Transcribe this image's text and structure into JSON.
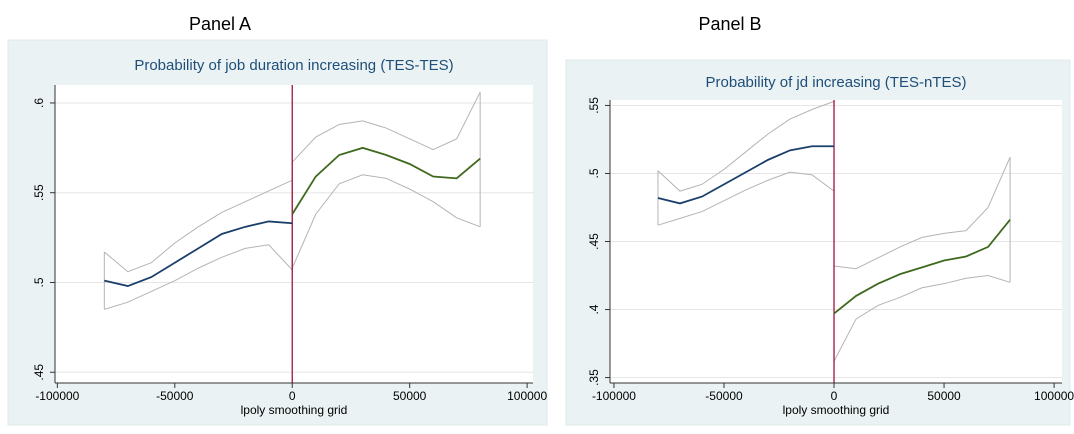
{
  "chart_data": [
    {
      "type": "line",
      "panel_label": "Panel A",
      "title": "Probability of job duration increasing (TES-TES)",
      "x_label": "lpoly smoothing grid",
      "xlim": [
        -101000,
        102500
      ],
      "xticks": [
        -100000,
        -50000,
        0,
        50000,
        100000
      ],
      "ylim": [
        0.444,
        0.61
      ],
      "yticks": [
        {
          "value": 0.45,
          "label": ".45"
        },
        {
          "value": 0.5,
          "label": ".5"
        },
        {
          "value": 0.55,
          "label": ".55"
        },
        {
          "value": 0.6,
          "label": ".6"
        }
      ],
      "grid": true,
      "cutoff": 0,
      "cutoff_color": "#a0143c",
      "bands": [
        {
          "color": "#b4b4b4",
          "x": [
            -80000,
            -70000,
            -60000,
            -50000,
            -40000,
            -30000,
            -20000,
            -10000,
            0
          ],
          "upper": [
            0.517,
            0.506,
            0.511,
            0.522,
            0.531,
            0.539,
            0.545,
            0.551,
            0.557
          ],
          "lower": [
            0.485,
            0.489,
            0.495,
            0.501,
            0.508,
            0.514,
            0.519,
            0.521,
            0.507
          ]
        },
        {
          "color": "#b4b4b4",
          "x": [
            0,
            10000,
            20000,
            30000,
            40000,
            50000,
            60000,
            70000,
            80000
          ],
          "upper": [
            0.567,
            0.581,
            0.588,
            0.59,
            0.586,
            0.58,
            0.574,
            0.58,
            0.606
          ],
          "lower": [
            0.508,
            0.538,
            0.555,
            0.56,
            0.558,
            0.552,
            0.545,
            0.536,
            0.531
          ]
        }
      ],
      "series": [
        {
          "color": "#1a3f6b",
          "x": [
            -80000,
            -70000,
            -60000,
            -50000,
            -40000,
            -30000,
            -20000,
            -10000,
            0
          ],
          "values": [
            0.501,
            0.498,
            0.503,
            0.511,
            0.519,
            0.527,
            0.531,
            0.534,
            0.533
          ]
        },
        {
          "color": "#3f6a1e",
          "x": [
            0,
            10000,
            20000,
            30000,
            40000,
            50000,
            60000,
            70000,
            80000
          ],
          "values": [
            0.538,
            0.559,
            0.571,
            0.575,
            0.571,
            0.566,
            0.559,
            0.558,
            0.569
          ]
        }
      ]
    },
    {
      "type": "line",
      "panel_label": "Panel B",
      "title": "Probability of jd increasing (TES-nTES)",
      "x_label": "lpoly smoothing grid",
      "xlim": [
        -101800,
        103600
      ],
      "xticks": [
        -100000,
        -50000,
        0,
        50000,
        100000
      ],
      "ylim": [
        0.346,
        0.554
      ],
      "yticks": [
        {
          "value": 0.35,
          "label": ".35"
        },
        {
          "value": 0.4,
          "label": ".4"
        },
        {
          "value": 0.45,
          "label": ".45"
        },
        {
          "value": 0.5,
          "label": ".5"
        },
        {
          "value": 0.55,
          "label": ".55"
        }
      ],
      "grid": true,
      "cutoff": 0,
      "cutoff_color": "#a0143c",
      "bands": [
        {
          "color": "#b4b4b4",
          "x": [
            -80000,
            -70000,
            -60000,
            -50000,
            -40000,
            -30000,
            -20000,
            -10000,
            0
          ],
          "upper": [
            0.502,
            0.487,
            0.492,
            0.503,
            0.516,
            0.529,
            0.54,
            0.547,
            0.553
          ],
          "lower": [
            0.462,
            0.467,
            0.472,
            0.48,
            0.488,
            0.495,
            0.501,
            0.499,
            0.487
          ]
        },
        {
          "color": "#b4b4b4",
          "x": [
            0,
            10000,
            20000,
            30000,
            40000,
            50000,
            60000,
            70000,
            80000
          ],
          "upper": [
            0.432,
            0.43,
            0.438,
            0.446,
            0.453,
            0.456,
            0.458,
            0.475,
            0.512
          ],
          "lower": [
            0.362,
            0.393,
            0.403,
            0.409,
            0.416,
            0.419,
            0.423,
            0.425,
            0.42
          ]
        }
      ],
      "series": [
        {
          "color": "#1a3f6b",
          "x": [
            -80000,
            -70000,
            -60000,
            -50000,
            -40000,
            -30000,
            -20000,
            -10000,
            0
          ],
          "values": [
            0.482,
            0.478,
            0.483,
            0.492,
            0.501,
            0.51,
            0.517,
            0.52,
            0.52
          ]
        },
        {
          "color": "#3f6a1e",
          "x": [
            0,
            10000,
            20000,
            30000,
            40000,
            50000,
            60000,
            70000,
            80000
          ],
          "values": [
            0.397,
            0.41,
            0.419,
            0.426,
            0.431,
            0.436,
            0.439,
            0.446,
            0.466
          ]
        }
      ]
    }
  ]
}
